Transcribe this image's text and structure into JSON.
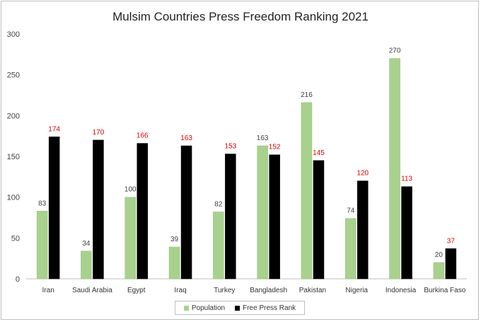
{
  "chart_data": {
    "type": "bar",
    "title": "Mulsim Countries Press Freedom Ranking 2021",
    "xlabel": "",
    "ylabel": "",
    "categories": [
      "Iran",
      "Saudi Arabia",
      "Egypt",
      "Iraq",
      "Turkey",
      "Bangladesh",
      "Pakistan",
      "Nigeria",
      "Indonesia",
      "Burkina Faso"
    ],
    "series": [
      {
        "name": "Population",
        "color": "#a9d18e",
        "label_color": "#404040",
        "values": [
          83,
          34,
          100,
          39,
          82,
          163,
          216,
          74,
          270,
          20
        ]
      },
      {
        "name": "Free Press Rank",
        "color": "#000000",
        "label_color": "#e00000",
        "values": [
          174,
          170,
          166,
          163,
          153,
          152,
          145,
          120,
          113,
          37
        ]
      }
    ],
    "ylim": [
      0,
      300
    ],
    "yticks": [
      0,
      50,
      100,
      150,
      200,
      250,
      300
    ],
    "grid": false,
    "legend_position": "bottom"
  }
}
